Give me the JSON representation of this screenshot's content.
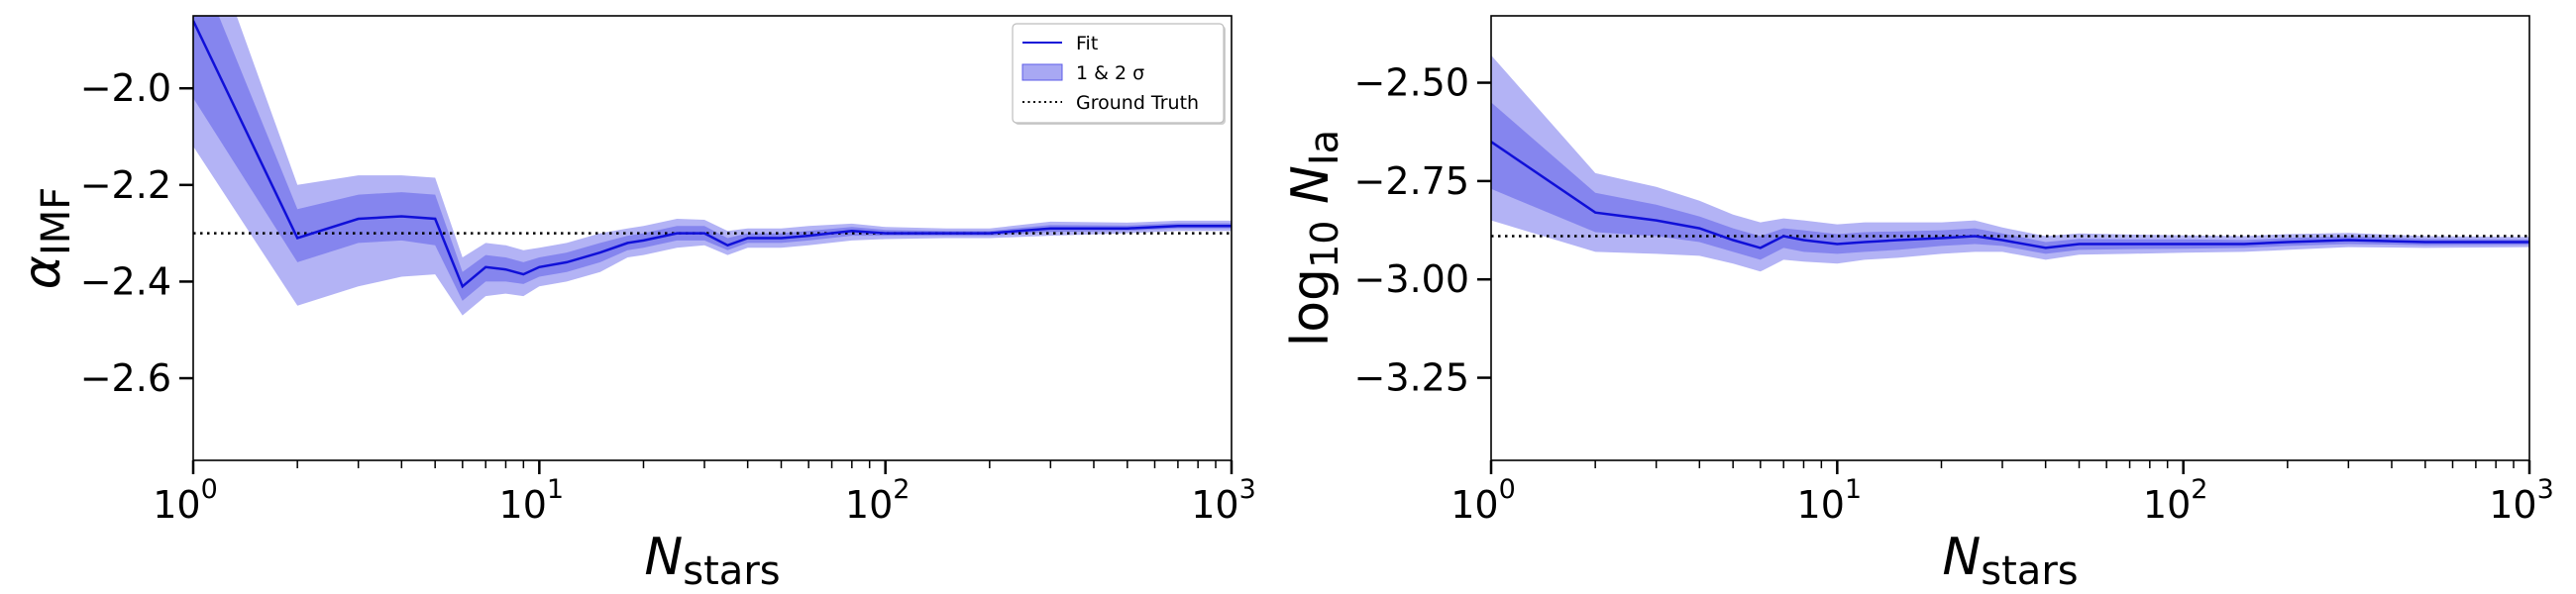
{
  "chart_data": [
    {
      "type": "line",
      "xscale": "log",
      "xlim": [
        1,
        1000
      ],
      "ylim": [
        -2.77,
        -1.85
      ],
      "xlabel": "N",
      "xlabel_sub": "stars",
      "ylabel": "α",
      "ylabel_sub": "IMF",
      "xticks": [
        {
          "value": 1,
          "base": "10",
          "exp": "0"
        },
        {
          "value": 10,
          "base": "10",
          "exp": "1"
        },
        {
          "value": 100,
          "base": "10",
          "exp": "2"
        },
        {
          "value": 1000,
          "base": "10",
          "exp": "3"
        }
      ],
      "yticks": [
        {
          "value": -2.0,
          "label": "−2.0"
        },
        {
          "value": -2.2,
          "label": "−2.2"
        },
        {
          "value": -2.4,
          "label": "−2.4"
        },
        {
          "value": -2.6,
          "label": "−2.6"
        }
      ],
      "ground_truth": -2.3,
      "series": [
        {
          "name": "Fit",
          "x": [
            1,
            2,
            3,
            4,
            5,
            6,
            7,
            8,
            9,
            10,
            12,
            15,
            18,
            20,
            25,
            30,
            35,
            40,
            50,
            60,
            80,
            100,
            150,
            200,
            300,
            500,
            700,
            1000
          ],
          "y": [
            -1.86,
            -2.31,
            -2.27,
            -2.265,
            -2.27,
            -2.41,
            -2.37,
            -2.375,
            -2.385,
            -2.37,
            -2.36,
            -2.34,
            -2.32,
            -2.315,
            -2.3,
            -2.3,
            -2.325,
            -2.31,
            -2.31,
            -2.305,
            -2.295,
            -2.3,
            -2.3,
            -2.3,
            -2.29,
            -2.29,
            -2.285,
            -2.285
          ],
          "lo1": [
            -2.02,
            -2.36,
            -2.32,
            -2.315,
            -2.325,
            -2.44,
            -2.4,
            -2.4,
            -2.405,
            -2.39,
            -2.38,
            -2.36,
            -2.335,
            -2.33,
            -2.315,
            -2.315,
            -2.335,
            -2.32,
            -2.32,
            -2.315,
            -2.305,
            -2.305,
            -2.305,
            -2.305,
            -2.297,
            -2.295,
            -2.29,
            -2.29
          ],
          "hi1": [
            -1.72,
            -2.25,
            -2.22,
            -2.215,
            -2.22,
            -2.38,
            -2.345,
            -2.35,
            -2.36,
            -2.35,
            -2.34,
            -2.32,
            -2.305,
            -2.3,
            -2.285,
            -2.285,
            -2.31,
            -2.3,
            -2.3,
            -2.295,
            -2.287,
            -2.293,
            -2.295,
            -2.295,
            -2.283,
            -2.284,
            -2.279,
            -2.279
          ],
          "lo2": [
            -2.12,
            -2.45,
            -2.41,
            -2.39,
            -2.385,
            -2.47,
            -2.43,
            -2.425,
            -2.43,
            -2.41,
            -2.4,
            -2.38,
            -2.35,
            -2.345,
            -2.33,
            -2.325,
            -2.345,
            -2.33,
            -2.33,
            -2.325,
            -2.315,
            -2.312,
            -2.31,
            -2.31,
            -2.305,
            -2.3,
            -2.295,
            -2.295
          ],
          "hi2": [
            -1.6,
            -2.2,
            -2.18,
            -2.18,
            -2.185,
            -2.35,
            -2.32,
            -2.325,
            -2.335,
            -2.33,
            -2.32,
            -2.3,
            -2.29,
            -2.285,
            -2.27,
            -2.272,
            -2.295,
            -2.29,
            -2.29,
            -2.285,
            -2.28,
            -2.287,
            -2.29,
            -2.29,
            -2.276,
            -2.278,
            -2.274,
            -2.274
          ]
        }
      ],
      "legend": {
        "position": "top-right",
        "entries": [
          {
            "label": "Fit",
            "kind": "line"
          },
          {
            "label": "1 & 2 σ",
            "kind": "patch"
          },
          {
            "label": "Ground Truth",
            "kind": "dotted"
          }
        ]
      }
    },
    {
      "type": "line",
      "xscale": "log",
      "xlim": [
        1,
        1000
      ],
      "ylim": [
        -3.46,
        -2.33
      ],
      "xlabel": "N",
      "xlabel_sub": "stars",
      "ylabel": "log",
      "ylabel_logsub": "10",
      "ylabel_var": "N",
      "ylabel_sub": "Ia",
      "xticks": [
        {
          "value": 1,
          "base": "10",
          "exp": "0"
        },
        {
          "value": 10,
          "base": "10",
          "exp": "1"
        },
        {
          "value": 100,
          "base": "10",
          "exp": "2"
        },
        {
          "value": 1000,
          "base": "10",
          "exp": "3"
        }
      ],
      "yticks": [
        {
          "value": -2.5,
          "label": "−2.50"
        },
        {
          "value": -2.75,
          "label": "−2.75"
        },
        {
          "value": -3.0,
          "label": "−3.00"
        },
        {
          "value": -3.25,
          "label": "−3.25"
        }
      ],
      "ground_truth": -2.89,
      "series": [
        {
          "name": "Fit",
          "x": [
            1,
            2,
            3,
            4,
            5,
            6,
            7,
            8,
            10,
            12,
            15,
            20,
            25,
            30,
            40,
            50,
            70,
            100,
            150,
            200,
            300,
            500,
            1000
          ],
          "y": [
            -2.65,
            -2.83,
            -2.85,
            -2.87,
            -2.9,
            -2.92,
            -2.89,
            -2.9,
            -2.91,
            -2.905,
            -2.9,
            -2.895,
            -2.89,
            -2.9,
            -2.92,
            -2.91,
            -2.91,
            -2.91,
            -2.91,
            -2.905,
            -2.9,
            -2.905,
            -2.905
          ],
          "lo1": [
            -2.77,
            -2.88,
            -2.89,
            -2.905,
            -2.93,
            -2.95,
            -2.92,
            -2.93,
            -2.935,
            -2.93,
            -2.925,
            -2.915,
            -2.91,
            -2.915,
            -2.935,
            -2.925,
            -2.923,
            -2.922,
            -2.92,
            -2.915,
            -2.91,
            -2.913,
            -2.912
          ],
          "hi1": [
            -2.55,
            -2.78,
            -2.81,
            -2.84,
            -2.87,
            -2.89,
            -2.87,
            -2.875,
            -2.885,
            -2.88,
            -2.878,
            -2.875,
            -2.87,
            -2.883,
            -2.905,
            -2.897,
            -2.898,
            -2.898,
            -2.9,
            -2.895,
            -2.89,
            -2.897,
            -2.898
          ],
          "lo2": [
            -2.85,
            -2.93,
            -2.935,
            -2.94,
            -2.96,
            -2.98,
            -2.95,
            -2.955,
            -2.96,
            -2.95,
            -2.945,
            -2.935,
            -2.93,
            -2.93,
            -2.95,
            -2.937,
            -2.935,
            -2.932,
            -2.93,
            -2.925,
            -2.918,
            -2.92,
            -2.918
          ],
          "hi2": [
            -2.43,
            -2.73,
            -2.765,
            -2.8,
            -2.835,
            -2.855,
            -2.845,
            -2.85,
            -2.86,
            -2.855,
            -2.855,
            -2.855,
            -2.85,
            -2.868,
            -2.89,
            -2.883,
            -2.886,
            -2.888,
            -2.89,
            -2.885,
            -2.882,
            -2.89,
            -2.892
          ]
        }
      ]
    }
  ]
}
